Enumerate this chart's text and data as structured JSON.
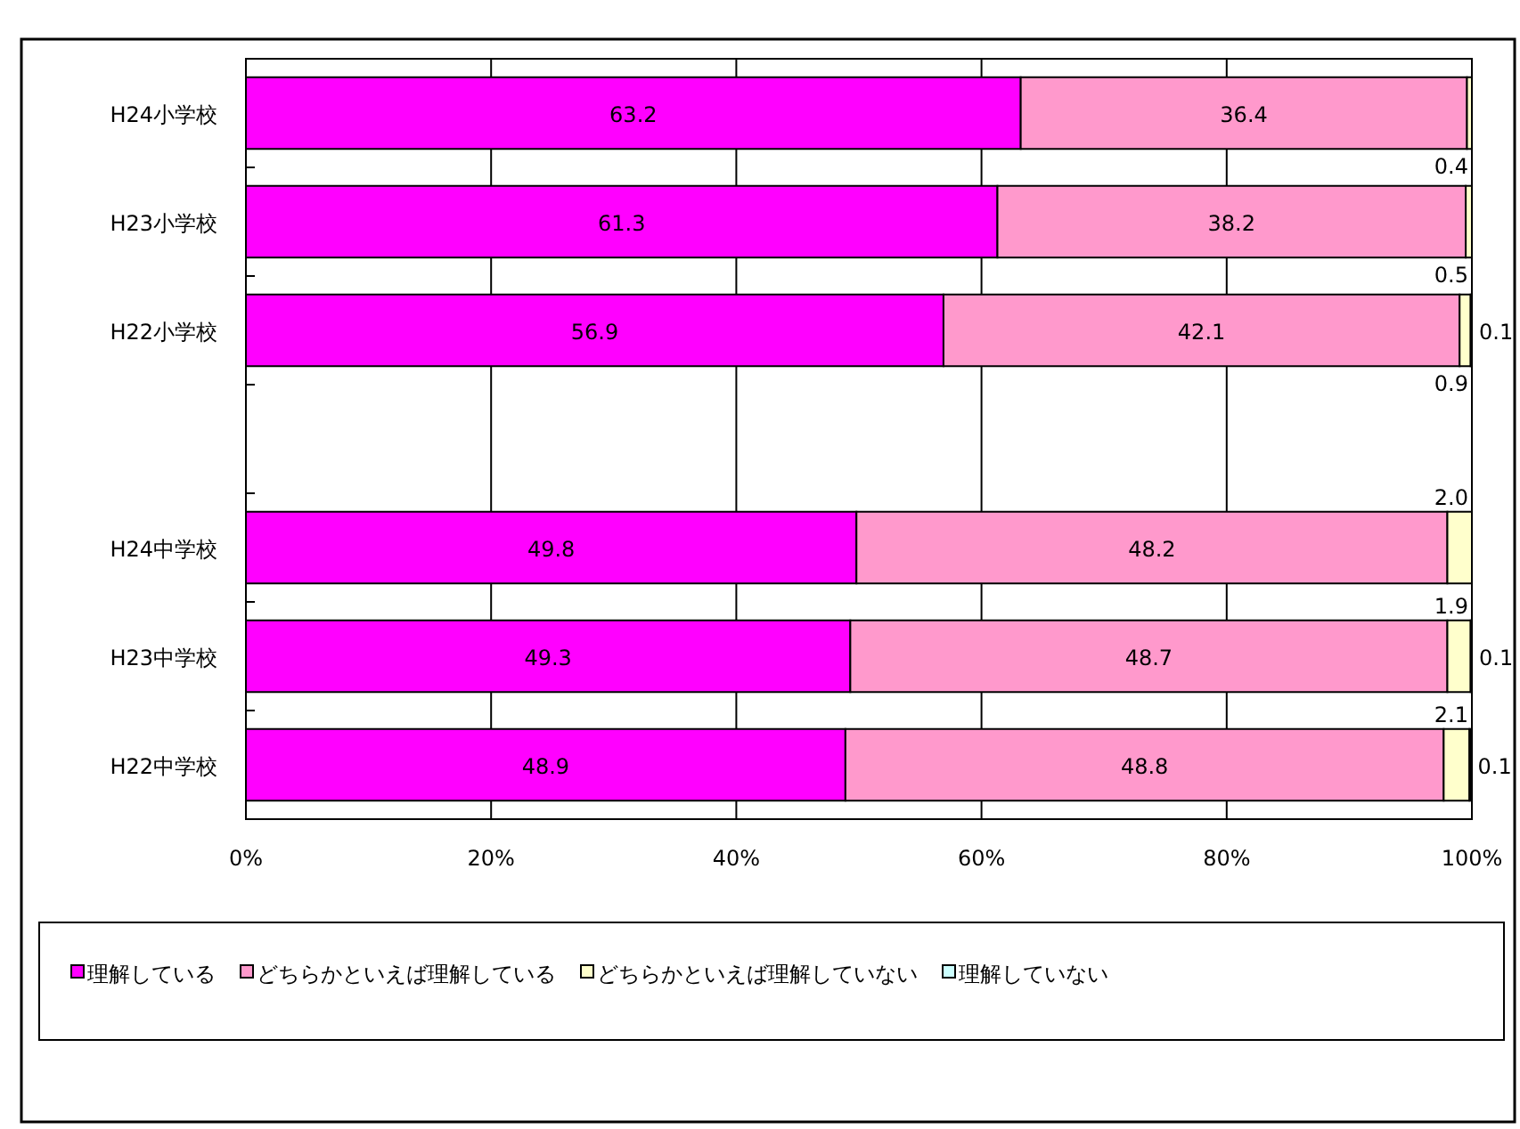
{
  "chart_data": {
    "type": "bar",
    "orientation": "horizontal",
    "stacked": true,
    "categories": [
      "H24小学校",
      "H23小学校",
      "H22小学校",
      null,
      "H24中学校",
      "H23中学校",
      "H22中学校"
    ],
    "series": [
      {
        "name": "理解している",
        "color": "#ff00ff",
        "values": [
          63.2,
          61.3,
          56.9,
          null,
          49.8,
          49.3,
          48.9
        ],
        "value_labels": [
          "63.2",
          "61.3",
          "56.9",
          null,
          "49.8",
          "49.3",
          "48.9"
        ]
      },
      {
        "name": "どちらかといえば理解している",
        "color": "#ff99cc",
        "values": [
          36.4,
          38.2,
          42.1,
          null,
          48.2,
          48.7,
          48.8
        ],
        "value_labels": [
          "36.4",
          "38.2",
          "42.1",
          null,
          "48.2",
          "48.7",
          "48.8"
        ]
      },
      {
        "name": "どちらかといえば理解していない",
        "color": "#ffffcc",
        "values": [
          0.4,
          0.5,
          0.9,
          null,
          2.0,
          1.9,
          2.1
        ],
        "value_labels": [
          "0.4",
          "0.5",
          "0.9",
          null,
          "2.0",
          "1.9",
          "2.1"
        ]
      },
      {
        "name": "理解していない",
        "color": "#ccffff",
        "values": [
          0,
          0,
          0.1,
          null,
          0,
          0.1,
          0.1
        ],
        "value_labels": [
          null,
          null,
          "0.1",
          null,
          null,
          "0.1",
          "0.1"
        ]
      }
    ],
    "xlim": [
      0,
      100
    ],
    "xticks": [
      {
        "value": 0,
        "label": "0%"
      },
      {
        "value": 20,
        "label": "20%"
      },
      {
        "value": 40,
        "label": "40%"
      },
      {
        "value": 60,
        "label": "60%"
      },
      {
        "value": 80,
        "label": "80%"
      },
      {
        "value": 100,
        "label": "100%"
      }
    ],
    "grid": "x",
    "legend": "bottom"
  }
}
